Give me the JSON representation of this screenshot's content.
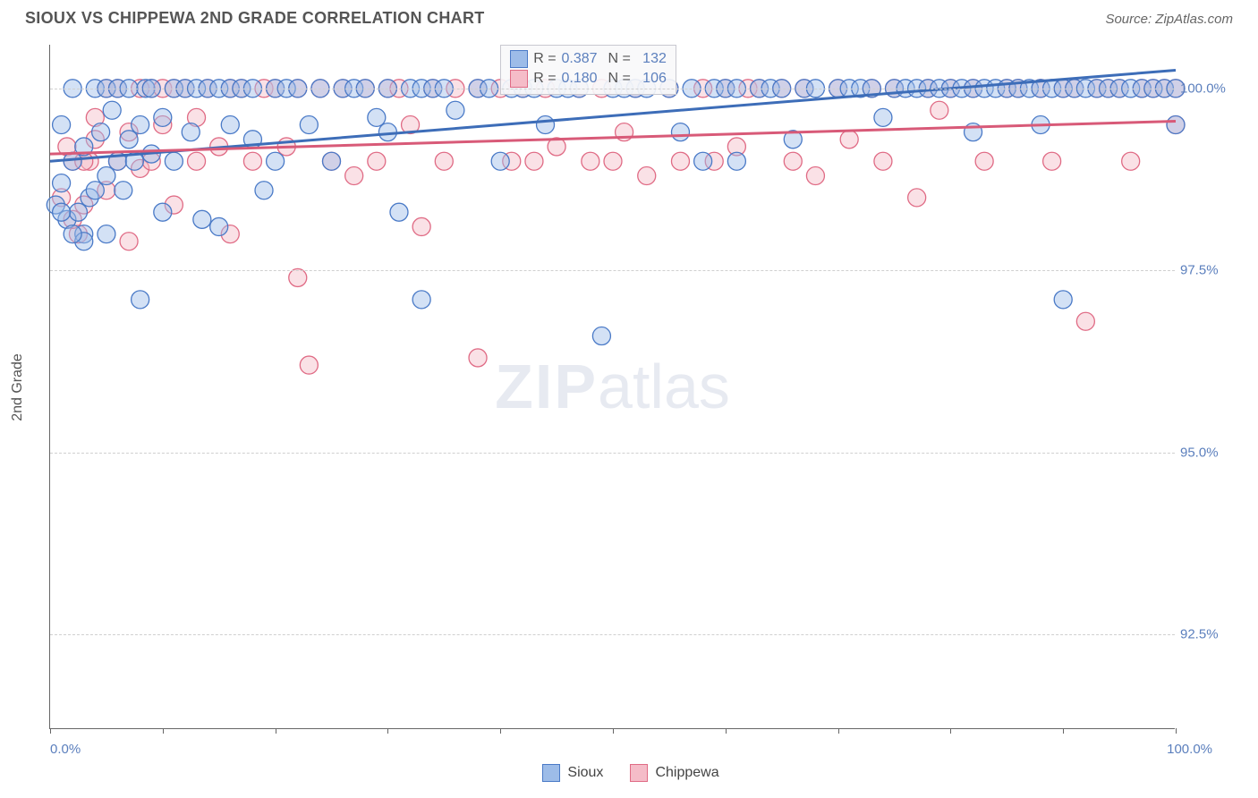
{
  "title": "SIOUX VS CHIPPEWA 2ND GRADE CORRELATION CHART",
  "source": "Source: ZipAtlas.com",
  "watermark_zip": "ZIP",
  "watermark_atlas": "atlas",
  "chart": {
    "type": "scatter",
    "background_color": "#ffffff",
    "grid_color": "#d0d0d0",
    "axis_color": "#666666",
    "label_color": "#555555",
    "value_color": "#5b7fbd",
    "ylabel": "2nd Grade",
    "xlim": [
      0,
      100
    ],
    "ylim": [
      91.2,
      100.6
    ],
    "marker_radius": 10,
    "marker_opacity": 0.45,
    "marker_stroke_width": 1.3,
    "line_width": 3,
    "xticks": [
      0,
      10,
      20,
      30,
      40,
      50,
      60,
      70,
      80,
      90,
      100
    ],
    "xtick_labels": {
      "0": "0.0%",
      "100": "100.0%"
    },
    "yticks": [
      92.5,
      95.0,
      97.5,
      100.0
    ],
    "ytick_labels": [
      "92.5%",
      "95.0%",
      "97.5%",
      "100.0%"
    ],
    "series": [
      {
        "name": "Sioux",
        "fill_color": "#9dbce8",
        "stroke_color": "#4a7ac7",
        "line_color": "#3d6db8",
        "trend": {
          "x1": 0,
          "y1": 99.0,
          "x2": 100,
          "y2": 100.25
        },
        "R_label": "R =",
        "R": "0.387",
        "N_label": "N =",
        "N": "132",
        "points": [
          [
            0.5,
            98.4
          ],
          [
            1,
            98.7
          ],
          [
            1,
            99.5
          ],
          [
            1.5,
            98.2
          ],
          [
            2,
            99.0
          ],
          [
            2,
            100.0
          ],
          [
            2.5,
            98.3
          ],
          [
            3,
            99.2
          ],
          [
            3,
            98.0
          ],
          [
            3.5,
            98.5
          ],
          [
            4,
            100.0
          ],
          [
            4,
            98.6
          ],
          [
            4.5,
            99.4
          ],
          [
            5,
            98.8
          ],
          [
            5,
            100.0
          ],
          [
            5.5,
            99.7
          ],
          [
            6,
            100.0
          ],
          [
            6,
            99.0
          ],
          [
            6.5,
            98.6
          ],
          [
            7,
            99.3
          ],
          [
            7,
            100.0
          ],
          [
            7.5,
            99.0
          ],
          [
            8,
            97.1
          ],
          [
            8,
            99.5
          ],
          [
            8.5,
            100.0
          ],
          [
            9,
            99.1
          ],
          [
            9,
            100.0
          ],
          [
            10,
            99.6
          ],
          [
            10,
            98.3
          ],
          [
            11,
            100.0
          ],
          [
            11,
            99.0
          ],
          [
            12,
            100.0
          ],
          [
            12.5,
            99.4
          ],
          [
            13,
            100.0
          ],
          [
            13.5,
            98.2
          ],
          [
            14,
            100.0
          ],
          [
            15,
            98.1
          ],
          [
            15,
            100.0
          ],
          [
            16,
            99.5
          ],
          [
            16,
            100.0
          ],
          [
            17,
            100.0
          ],
          [
            18,
            99.3
          ],
          [
            18,
            100.0
          ],
          [
            19,
            98.6
          ],
          [
            20,
            100.0
          ],
          [
            20,
            99.0
          ],
          [
            21,
            100.0
          ],
          [
            22,
            100.0
          ],
          [
            23,
            99.5
          ],
          [
            24,
            100.0
          ],
          [
            25,
            99.0
          ],
          [
            26,
            100.0
          ],
          [
            27,
            100.0
          ],
          [
            28,
            100.0
          ],
          [
            29,
            99.6
          ],
          [
            30,
            100.0
          ],
          [
            30,
            99.4
          ],
          [
            31,
            98.3
          ],
          [
            32,
            100.0
          ],
          [
            33,
            97.1
          ],
          [
            33,
            100.0
          ],
          [
            34,
            100.0
          ],
          [
            35,
            100.0
          ],
          [
            36,
            99.7
          ],
          [
            38,
            100.0
          ],
          [
            39,
            100.0
          ],
          [
            40,
            99.0
          ],
          [
            41,
            100.0
          ],
          [
            42,
            100.0
          ],
          [
            43,
            100.0
          ],
          [
            44,
            99.5
          ],
          [
            45,
            100.0
          ],
          [
            46,
            100.0
          ],
          [
            47,
            100.0
          ],
          [
            49,
            96.6
          ],
          [
            50,
            100.0
          ],
          [
            51,
            100.0
          ],
          [
            52,
            100.0
          ],
          [
            53,
            100.0
          ],
          [
            55,
            100.0
          ],
          [
            56,
            99.4
          ],
          [
            57,
            100.0
          ],
          [
            58,
            99.0
          ],
          [
            59,
            100.0
          ],
          [
            60,
            100.0
          ],
          [
            61,
            100.0
          ],
          [
            61,
            99.0
          ],
          [
            63,
            100.0
          ],
          [
            64,
            100.0
          ],
          [
            65,
            100.0
          ],
          [
            66,
            99.3
          ],
          [
            67,
            100.0
          ],
          [
            68,
            100.0
          ],
          [
            70,
            100.0
          ],
          [
            71,
            100.0
          ],
          [
            72,
            100.0
          ],
          [
            73,
            100.0
          ],
          [
            74,
            99.6
          ],
          [
            75,
            100.0
          ],
          [
            76,
            100.0
          ],
          [
            77,
            100.0
          ],
          [
            78,
            100.0
          ],
          [
            79,
            100.0
          ],
          [
            80,
            100.0
          ],
          [
            81,
            100.0
          ],
          [
            82,
            100.0
          ],
          [
            82,
            99.4
          ],
          [
            83,
            100.0
          ],
          [
            84,
            100.0
          ],
          [
            85,
            100.0
          ],
          [
            86,
            100.0
          ],
          [
            87,
            100.0
          ],
          [
            88,
            100.0
          ],
          [
            88,
            99.5
          ],
          [
            89,
            100.0
          ],
          [
            90,
            100.0
          ],
          [
            90,
            97.1
          ],
          [
            91,
            100.0
          ],
          [
            92,
            100.0
          ],
          [
            93,
            100.0
          ],
          [
            94,
            100.0
          ],
          [
            95,
            100.0
          ],
          [
            96,
            100.0
          ],
          [
            97,
            100.0
          ],
          [
            98,
            100.0
          ],
          [
            99,
            100.0
          ],
          [
            100,
            100.0
          ],
          [
            100,
            99.5
          ],
          [
            5,
            98.0
          ],
          [
            3,
            97.9
          ],
          [
            2,
            98.0
          ],
          [
            1,
            98.3
          ]
        ]
      },
      {
        "name": "Chippewa",
        "fill_color": "#f5bcc8",
        "stroke_color": "#e06b85",
        "line_color": "#d85a78",
        "trend": {
          "x1": 0,
          "y1": 99.1,
          "x2": 100,
          "y2": 99.55
        },
        "R_label": "R =",
        "R": "0.180",
        "N_label": "N =",
        "N": "106",
        "points": [
          [
            1,
            98.5
          ],
          [
            1.5,
            99.2
          ],
          [
            2,
            99.0
          ],
          [
            2.5,
            98.0
          ],
          [
            3,
            98.4
          ],
          [
            3.5,
            99.0
          ],
          [
            4,
            99.3
          ],
          [
            4,
            99.6
          ],
          [
            5,
            100.0
          ],
          [
            5,
            98.6
          ],
          [
            6,
            100.0
          ],
          [
            6,
            99.0
          ],
          [
            7,
            97.9
          ],
          [
            7,
            99.4
          ],
          [
            8,
            100.0
          ],
          [
            8,
            98.9
          ],
          [
            9,
            99.0
          ],
          [
            9,
            100.0
          ],
          [
            10,
            100.0
          ],
          [
            10,
            99.5
          ],
          [
            11,
            100.0
          ],
          [
            11,
            98.4
          ],
          [
            12,
            100.0
          ],
          [
            13,
            99.0
          ],
          [
            13,
            99.6
          ],
          [
            14,
            100.0
          ],
          [
            15,
            99.2
          ],
          [
            16,
            100.0
          ],
          [
            16,
            98.0
          ],
          [
            17,
            100.0
          ],
          [
            18,
            99.0
          ],
          [
            19,
            100.0
          ],
          [
            20,
            100.0
          ],
          [
            21,
            99.2
          ],
          [
            22,
            97.4
          ],
          [
            22,
            100.0
          ],
          [
            23,
            96.2
          ],
          [
            24,
            100.0
          ],
          [
            25,
            99.0
          ],
          [
            26,
            100.0
          ],
          [
            27,
            98.8
          ],
          [
            28,
            100.0
          ],
          [
            29,
            99.0
          ],
          [
            30,
            100.0
          ],
          [
            31,
            100.0
          ],
          [
            32,
            99.5
          ],
          [
            33,
            98.1
          ],
          [
            34,
            100.0
          ],
          [
            35,
            99.0
          ],
          [
            36,
            100.0
          ],
          [
            38,
            100.0
          ],
          [
            38,
            96.3
          ],
          [
            40,
            100.0
          ],
          [
            41,
            99.0
          ],
          [
            42,
            100.0
          ],
          [
            43,
            99.0
          ],
          [
            44,
            100.0
          ],
          [
            45,
            99.2
          ],
          [
            47,
            100.0
          ],
          [
            48,
            99.0
          ],
          [
            49,
            100.0
          ],
          [
            50,
            99.0
          ],
          [
            51,
            99.4
          ],
          [
            52,
            100.0
          ],
          [
            53,
            98.8
          ],
          [
            55,
            100.0
          ],
          [
            56,
            99.0
          ],
          [
            58,
            100.0
          ],
          [
            59,
            99.0
          ],
          [
            60,
            100.0
          ],
          [
            61,
            99.2
          ],
          [
            62,
            100.0
          ],
          [
            63,
            100.0
          ],
          [
            65,
            100.0
          ],
          [
            66,
            99.0
          ],
          [
            67,
            100.0
          ],
          [
            68,
            98.8
          ],
          [
            70,
            100.0
          ],
          [
            71,
            99.3
          ],
          [
            73,
            100.0
          ],
          [
            74,
            99.0
          ],
          [
            75,
            100.0
          ],
          [
            77,
            98.5
          ],
          [
            78,
            100.0
          ],
          [
            79,
            99.7
          ],
          [
            80,
            100.0
          ],
          [
            82,
            100.0
          ],
          [
            83,
            99.0
          ],
          [
            85,
            100.0
          ],
          [
            86,
            100.0
          ],
          [
            88,
            100.0
          ],
          [
            89,
            99.0
          ],
          [
            90,
            100.0
          ],
          [
            91,
            100.0
          ],
          [
            92,
            96.8
          ],
          [
            93,
            100.0
          ],
          [
            94,
            100.0
          ],
          [
            95,
            100.0
          ],
          [
            96,
            99.0
          ],
          [
            97,
            100.0
          ],
          [
            98,
            100.0
          ],
          [
            99,
            100.0
          ],
          [
            100,
            100.0
          ],
          [
            100,
            99.5
          ],
          [
            3,
            99.0
          ],
          [
            2,
            98.2
          ]
        ]
      }
    ],
    "legend_labels": [
      "Sioux",
      "Chippewa"
    ]
  }
}
